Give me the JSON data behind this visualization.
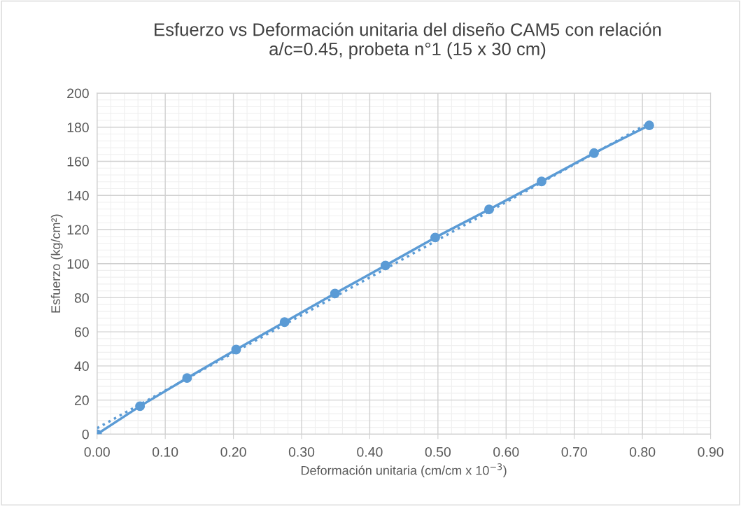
{
  "chart_data": {
    "type": "line",
    "title": "Esfuerzo vs Deformación unitaria del diseño CAM5 con relación\na/c=0.45, probeta n°1 (15 x 30 cm)",
    "xlabel": "Deformación unitaria (cm/cm x 10$^{−3}$)",
    "ylabel": "Esfuerzo (kg/cm²)",
    "x": [
      0,
      0.063,
      0.132,
      0.204,
      0.275,
      0.349,
      0.423,
      0.496,
      0.575,
      0.652,
      0.729,
      0.81
    ],
    "series": [
      {
        "color": "#5b9bd5",
        "marker": "circle",
        "line_style": "solid",
        "values": [
          0,
          16.4,
          32.9,
          49.6,
          65.7,
          82.5,
          98.9,
          115.3,
          131.8,
          148.2,
          164.8,
          181.1
        ]
      },
      {
        "type": "line",
        "color": "#5b9bd5",
        "marker": "none",
        "line_style": "dotted",
        "x": [
          0,
          0.81
        ],
        "values": [
          3.5,
          182.5
        ]
      }
    ],
    "xlim": [
      0,
      0.9
    ],
    "xticks": [
      {
        "value": 0,
        "label": "0.00"
      },
      {
        "value": 0.1,
        "label": "0.10"
      },
      {
        "value": 0.2,
        "label": "0.20"
      },
      {
        "value": 0.3,
        "label": "0.30"
      },
      {
        "value": 0.4,
        "label": "0.40"
      },
      {
        "value": 0.5,
        "label": "0.50"
      },
      {
        "value": 0.6,
        "label": "0.60"
      },
      {
        "value": 0.7,
        "label": "0.70"
      },
      {
        "value": 0.8,
        "label": "0.80"
      },
      {
        "value": 0.9,
        "label": "0.90"
      }
    ],
    "ylim": [
      0,
      200
    ],
    "yticks": [
      0,
      20,
      40,
      60,
      80,
      100,
      120,
      140,
      160,
      180,
      200
    ],
    "grid": true
  }
}
